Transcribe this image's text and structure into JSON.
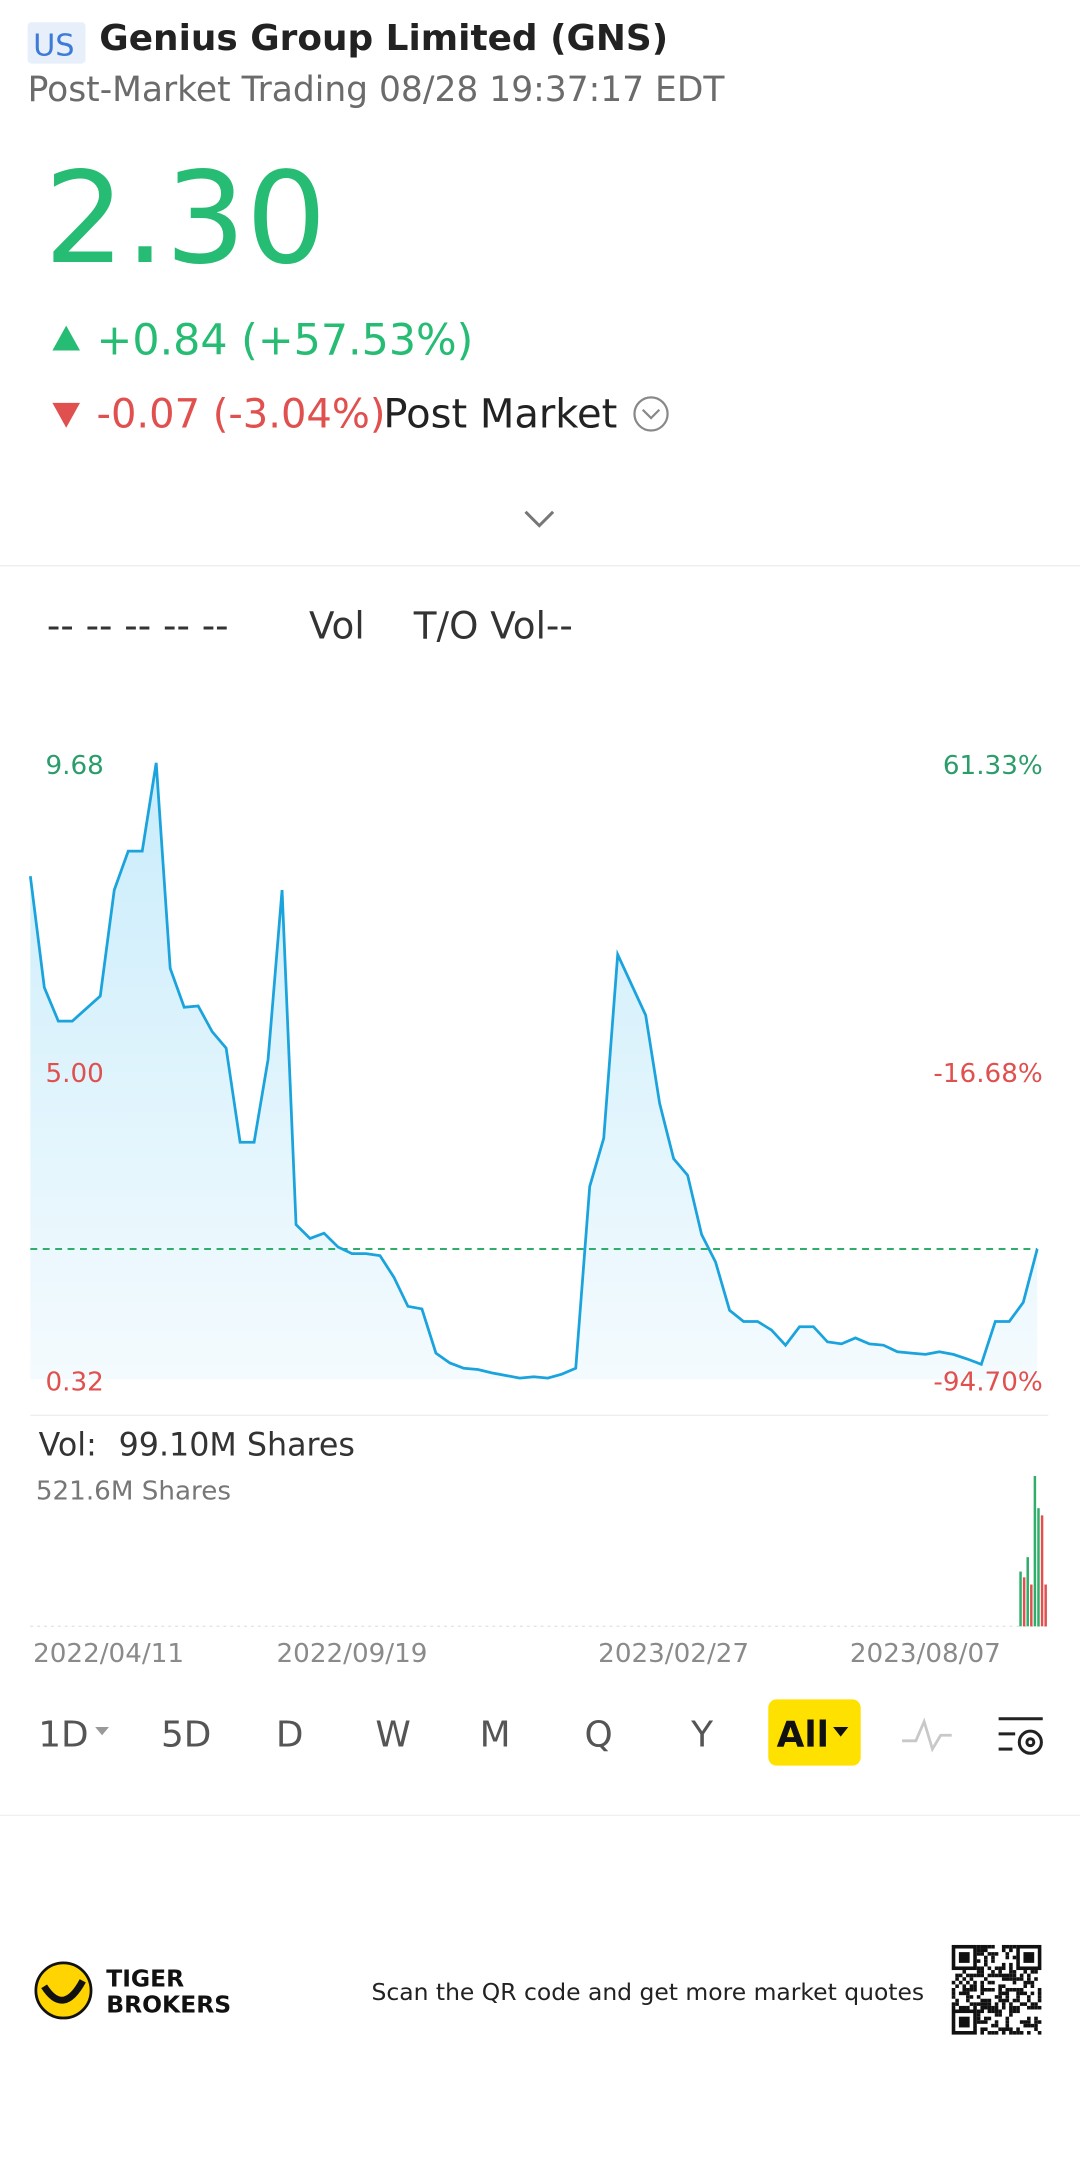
{
  "header": {
    "market": "US",
    "title": "Genius Group Limited (GNS)",
    "subtitle": "Post-Market Trading 08/28 19:37:17 EDT"
  },
  "quote": {
    "price": "2.30",
    "change": "+0.84 (+57.53%)",
    "post_change": "-0.07 (-3.04%)",
    "post_label": "Post Market"
  },
  "indicators": {
    "placeholders": "-- -- -- -- --",
    "vol": "Vol",
    "to_vol": "T/O Vol--"
  },
  "chart_data": [
    {
      "type": "line",
      "categories": [
        "2022/04/11",
        null,
        null,
        null,
        null,
        null,
        null,
        null,
        null,
        null,
        null,
        null,
        null,
        null,
        null,
        null,
        null,
        null,
        null,
        null,
        null,
        null,
        null,
        "2022/09/19",
        null,
        null,
        null,
        null,
        null,
        null,
        null,
        null,
        null,
        null,
        null,
        null,
        null,
        null,
        null,
        null,
        null,
        null,
        null,
        null,
        null,
        null,
        "2023/02/27",
        null,
        null,
        null,
        null,
        null,
        null,
        null,
        null,
        null,
        null,
        null,
        null,
        null,
        null,
        null,
        null,
        null,
        "2023/08/07",
        null,
        null,
        null,
        null,
        null,
        null,
        null,
        null
      ],
      "values": [
        7.96,
        6.27,
        5.76,
        5.76,
        5.95,
        6.14,
        7.75,
        8.34,
        8.34,
        9.68,
        6.56,
        5.97,
        5.99,
        5.6,
        5.35,
        3.92,
        3.92,
        5.18,
        7.75,
        2.67,
        2.46,
        2.54,
        2.33,
        2.23,
        2.23,
        2.2,
        1.87,
        1.43,
        1.39,
        0.72,
        0.57,
        0.49,
        0.47,
        0.42,
        0.38,
        0.34,
        0.36,
        0.34,
        0.4,
        0.49,
        3.25,
        3.98,
        6.77,
        6.31,
        5.85,
        4.51,
        3.67,
        3.42,
        2.52,
        2.1,
        1.37,
        1.2,
        1.2,
        1.07,
        0.84,
        1.12,
        1.12,
        0.89,
        0.86,
        0.95,
        0.86,
        0.84,
        0.74,
        0.72,
        0.7,
        0.74,
        0.7,
        0.63,
        0.55,
        1.2,
        1.2,
        1.49,
        2.3
      ],
      "color": "#1aa3dc",
      "reference": 2.3,
      "ylim": [
        0.32,
        9.68
      ],
      "yticks": [
        9.68,
        {
          "value": 5,
          "label": "5.00"
        },
        0.32
      ],
      "y2lim": [
        -94.7,
        61.33
      ],
      "y2ticks": [
        {
          "value": 61.33,
          "label": "61.33%"
        },
        {
          "value": -16.68,
          "label": "-16.68%"
        },
        {
          "value": -94.7,
          "label": "-94.70%"
        }
      ]
    },
    {
      "type": "bar",
      "title": "Vol:",
      "current": "99.10M Shares",
      "values": [
        190,
        170,
        240,
        145,
        521.6,
        410,
        385,
        145
      ],
      "colors": [
        "#2fae6b",
        "#e0504e",
        "#2fae6b",
        "#e0504e",
        "#2fae6b",
        "#2fae6b",
        "#e0504e",
        "#e0504e"
      ],
      "ylim": [
        0,
        521.6
      ],
      "yticks": [
        {
          "value": 521.6,
          "label": "521.6M Shares"
        }
      ]
    }
  ],
  "periods": [
    "1D",
    "5D",
    "D",
    "W",
    "M",
    "Q",
    "Y",
    "All"
  ],
  "footer": {
    "brand_line1": "TIGER",
    "brand_line2": "BROKERS",
    "cta": "Scan the QR code and get more market quotes"
  }
}
